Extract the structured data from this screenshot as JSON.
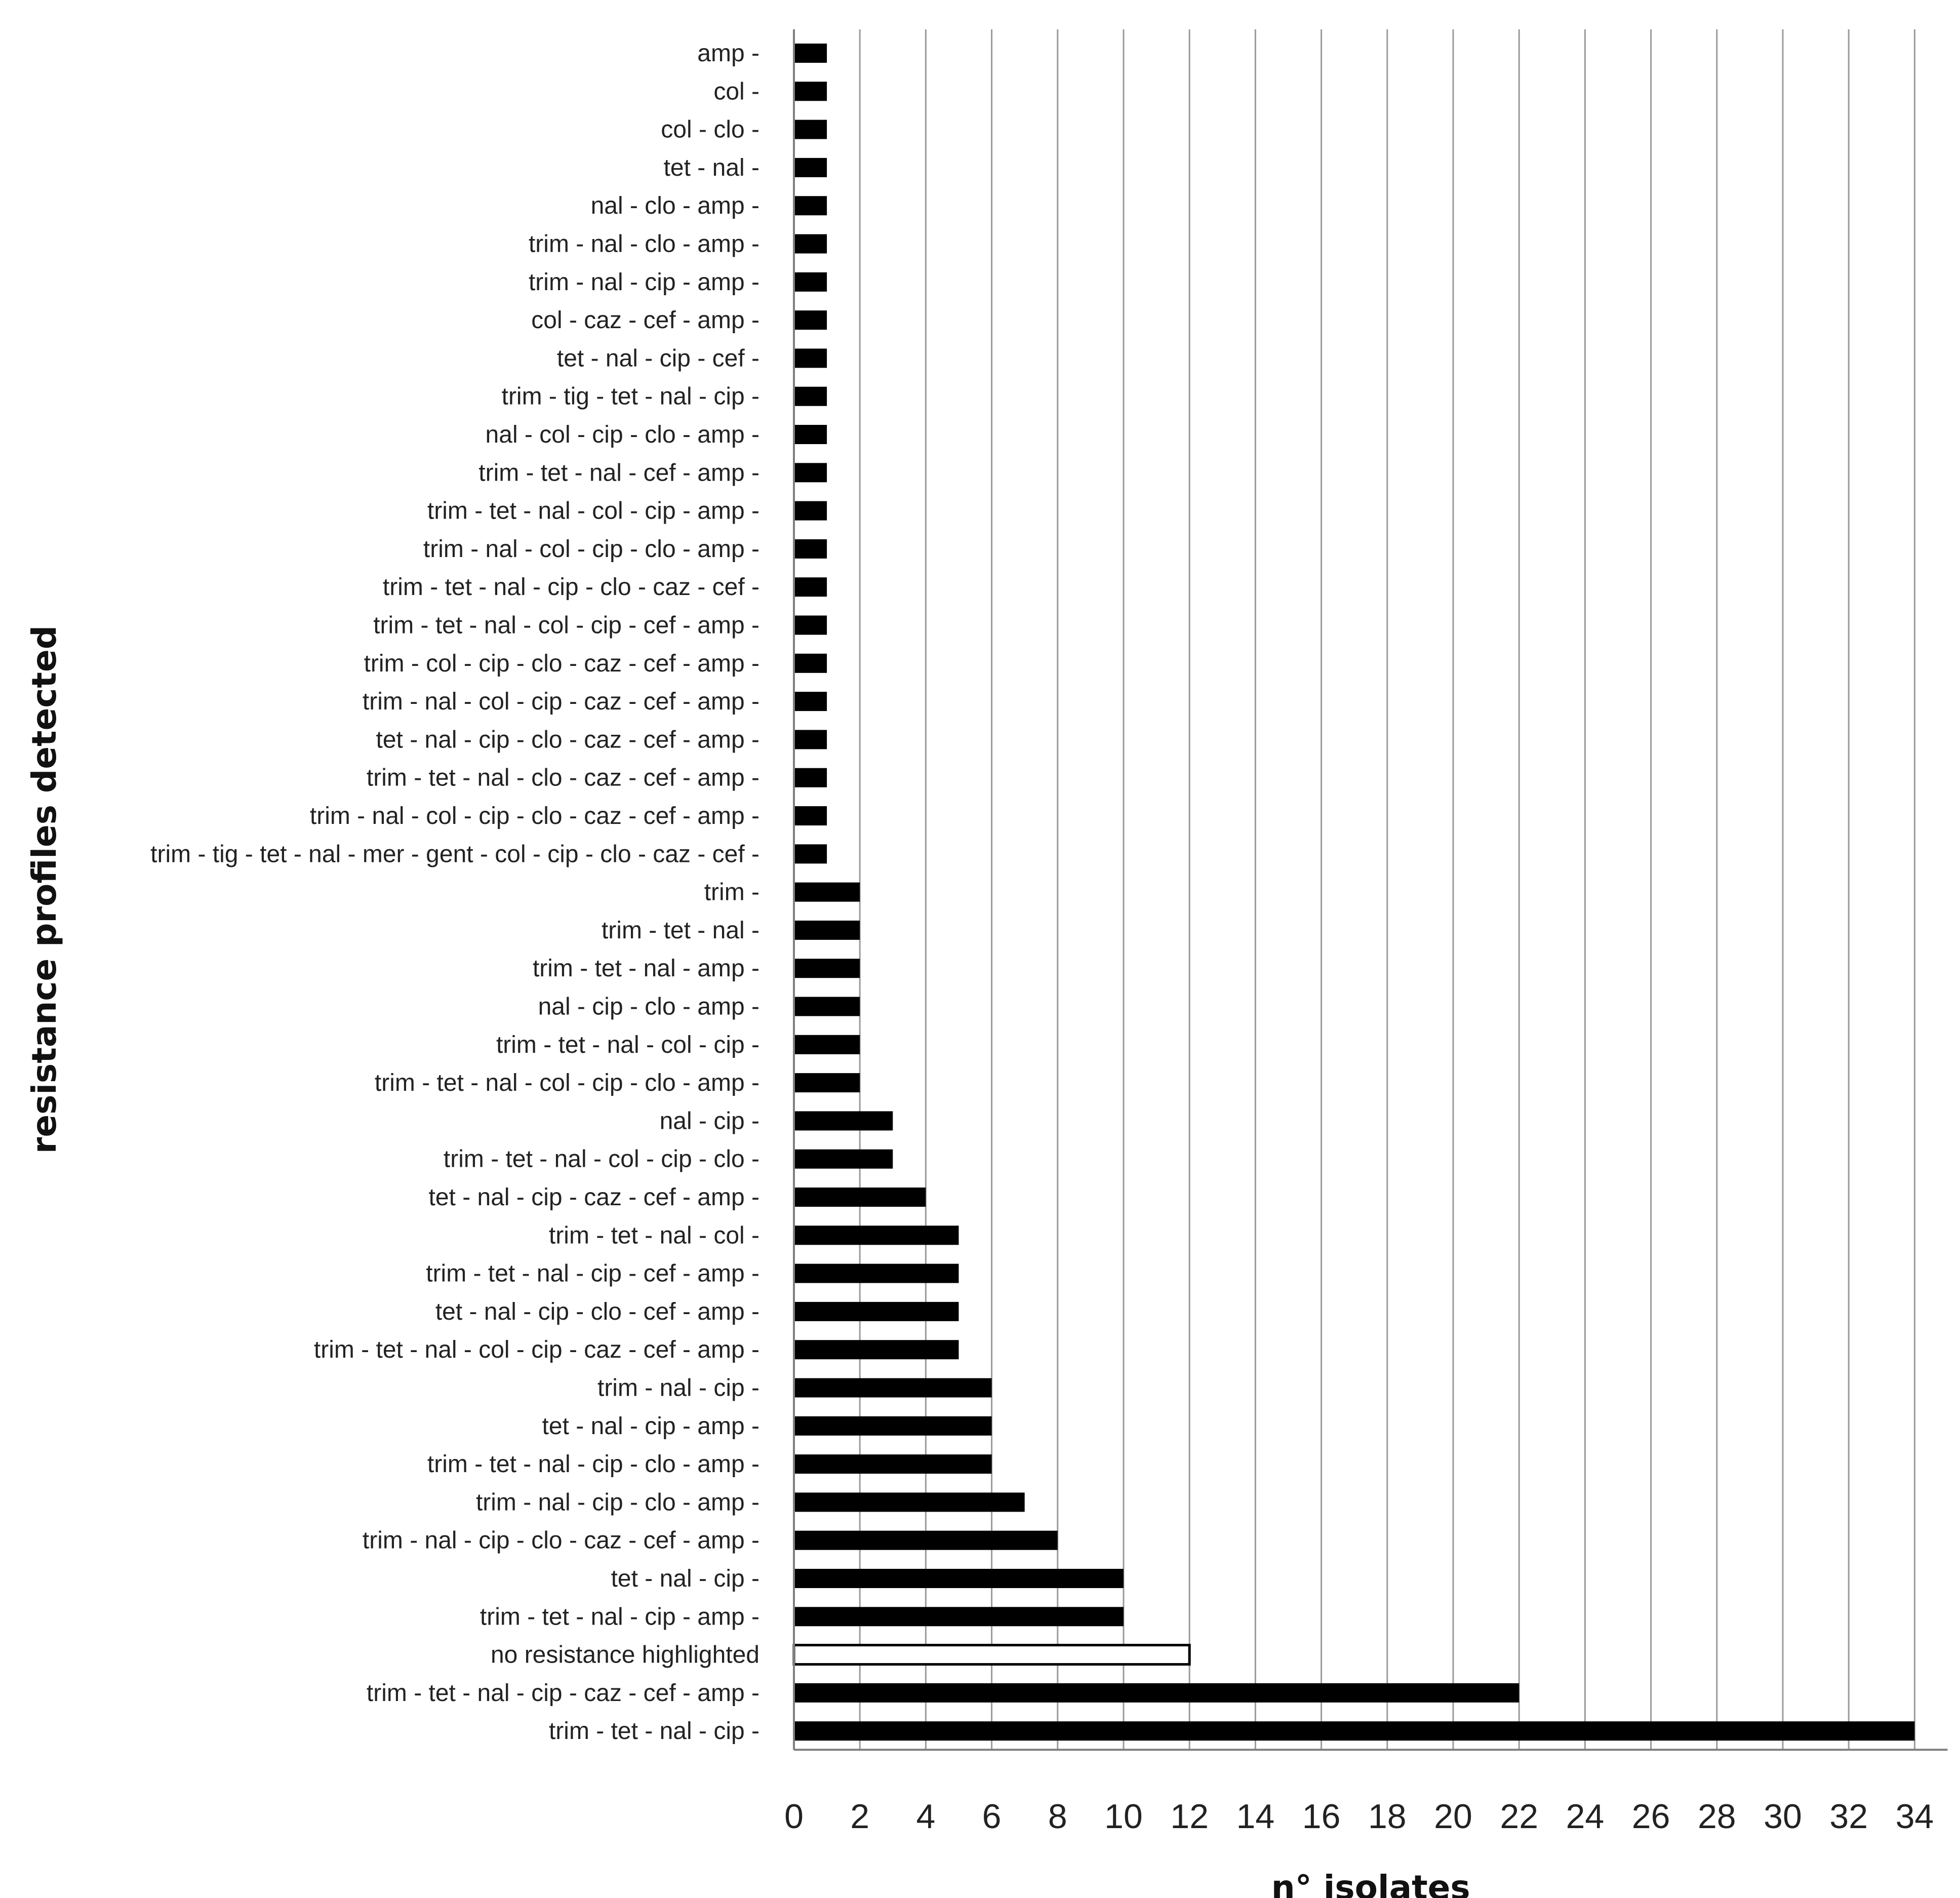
{
  "chart_data": {
    "type": "bar",
    "orientation": "horizontal",
    "xlabel": "n° isolates",
    "ylabel": "resistance profiles detected",
    "xlim": [
      0,
      35
    ],
    "xticks": [
      0,
      2,
      4,
      6,
      8,
      10,
      12,
      14,
      16,
      18,
      20,
      22,
      24,
      26,
      28,
      30,
      32,
      34
    ],
    "grid": "vertical",
    "legend": "none",
    "colors": {
      "bar": "#000000",
      "highlight_bar": "#ffffff",
      "grid": "#9a9a9a",
      "axis": "#7f7f7f"
    },
    "categories": [
      "amp -",
      "col -",
      "col - clo -",
      "tet - nal -",
      "nal - clo - amp -",
      "trim - nal - clo - amp -",
      "trim - nal - cip - amp -",
      "col - caz - cef - amp -",
      "tet - nal - cip - cef -",
      "trim - tig - tet - nal - cip -",
      "nal - col - cip - clo - amp -",
      "trim - tet - nal - cef - amp -",
      "trim - tet - nal - col - cip - amp -",
      "trim - nal - col - cip - clo - amp -",
      "trim - tet - nal - cip - clo - caz - cef -",
      "trim - tet - nal - col - cip - cef - amp -",
      "trim - col - cip - clo - caz - cef - amp -",
      "trim - nal - col - cip - caz - cef - amp -",
      "tet - nal - cip - clo - caz - cef - amp -",
      "trim - tet - nal - clo - caz - cef - amp -",
      "trim - nal - col - cip - clo - caz - cef - amp -",
      "trim - tig - tet - nal - mer - gent - col - cip - clo - caz - cef -",
      "trim -",
      "trim - tet - nal -",
      "trim - tet - nal - amp -",
      "nal - cip - clo - amp -",
      "trim - tet - nal - col - cip -",
      "trim - tet - nal - col - cip - clo - amp -",
      "nal - cip -",
      "trim - tet - nal - col - cip - clo -",
      "tet - nal - cip - caz - cef - amp -",
      "trim - tet - nal - col -",
      "trim - tet - nal - cip - cef - amp -",
      "tet - nal - cip - clo - cef - amp -",
      "trim - tet - nal - col - cip - caz - cef - amp -",
      "trim - nal - cip -",
      "tet - nal - cip - amp -",
      "trim - tet - nal - cip - clo - amp -",
      "trim - nal - cip - clo - amp -",
      "trim - nal - cip - clo - caz - cef - amp -",
      "tet - nal - cip -",
      "trim - tet - nal - cip - amp -",
      "no resistance highlighted",
      "trim - tet - nal - cip - caz - cef - amp -",
      "trim - tet - nal - cip -"
    ],
    "values": [
      1,
      1,
      1,
      1,
      1,
      1,
      1,
      1,
      1,
      1,
      1,
      1,
      1,
      1,
      1,
      1,
      1,
      1,
      1,
      1,
      1,
      1,
      2,
      2,
      2,
      2,
      2,
      2,
      3,
      3,
      4,
      5,
      5,
      5,
      5,
      6,
      6,
      6,
      7,
      8,
      10,
      10,
      12,
      22,
      34
    ],
    "highlighted": [
      "no resistance highlighted"
    ]
  }
}
